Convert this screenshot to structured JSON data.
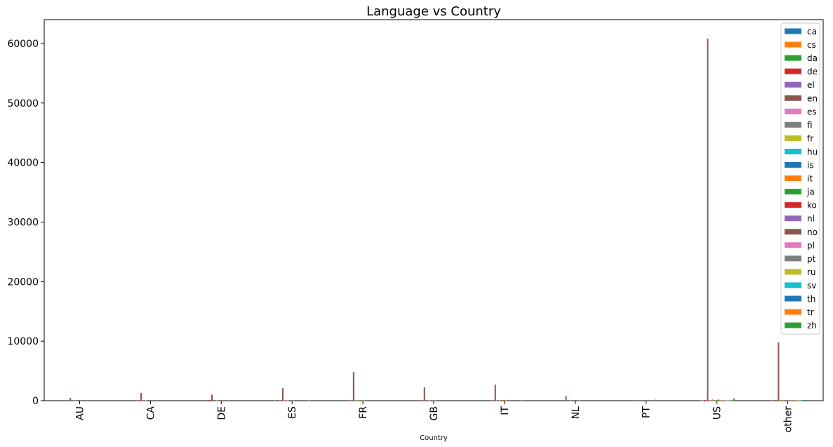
{
  "chart_data": {
    "type": "bar",
    "title": "Language vs Country",
    "xlabel": "Country",
    "ylabel": "",
    "ylim": [
      0,
      64000
    ],
    "yticks": [
      0,
      10000,
      20000,
      30000,
      40000,
      50000,
      60000
    ],
    "categories": [
      "AU",
      "CA",
      "DE",
      "ES",
      "FR",
      "GB",
      "IT",
      "NL",
      "PT",
      "US",
      "other"
    ],
    "legend_position": "top-right",
    "grid": false,
    "series": [
      {
        "name": "ca",
        "color": "#1f77b4",
        "values": [
          0,
          0,
          0,
          20,
          0,
          0,
          0,
          0,
          0,
          0,
          0
        ]
      },
      {
        "name": "cs",
        "color": "#ff7f0e",
        "values": [
          0,
          0,
          0,
          0,
          0,
          0,
          0,
          0,
          0,
          30,
          20
        ]
      },
      {
        "name": "da",
        "color": "#2ca02c",
        "values": [
          0,
          0,
          0,
          0,
          0,
          0,
          0,
          0,
          0,
          20,
          0
        ]
      },
      {
        "name": "de",
        "color": "#d62728",
        "values": [
          10,
          15,
          130,
          20,
          30,
          20,
          30,
          10,
          0,
          120,
          90
        ]
      },
      {
        "name": "el",
        "color": "#9467bd",
        "values": [
          0,
          0,
          0,
          0,
          0,
          0,
          0,
          0,
          0,
          20,
          0
        ]
      },
      {
        "name": "en",
        "color": "#8c564b",
        "values": [
          480,
          1300,
          1000,
          2100,
          4800,
          2250,
          2700,
          750,
          20,
          60800,
          9800
        ]
      },
      {
        "name": "es",
        "color": "#e377c2",
        "values": [
          0,
          10,
          0,
          60,
          20,
          0,
          20,
          0,
          0,
          150,
          80
        ]
      },
      {
        "name": "fi",
        "color": "#7f7f7f",
        "values": [
          0,
          0,
          0,
          0,
          0,
          0,
          0,
          0,
          0,
          20,
          0
        ]
      },
      {
        "name": "fr",
        "color": "#bcbd22",
        "values": [
          10,
          70,
          20,
          40,
          100,
          30,
          40,
          10,
          0,
          280,
          140
        ]
      },
      {
        "name": "hu",
        "color": "#17becf",
        "values": [
          0,
          0,
          0,
          0,
          0,
          0,
          0,
          0,
          0,
          20,
          0
        ]
      },
      {
        "name": "is",
        "color": "#1f77b4",
        "values": [
          0,
          0,
          0,
          0,
          0,
          0,
          0,
          0,
          0,
          10,
          0
        ]
      },
      {
        "name": "it",
        "color": "#ff7f0e",
        "values": [
          0,
          0,
          10,
          20,
          30,
          20,
          140,
          0,
          0,
          140,
          90
        ]
      },
      {
        "name": "ja",
        "color": "#2ca02c",
        "values": [
          0,
          0,
          0,
          20,
          30,
          10,
          20,
          0,
          0,
          180,
          80
        ]
      },
      {
        "name": "ko",
        "color": "#d62728",
        "values": [
          0,
          0,
          0,
          0,
          0,
          0,
          0,
          0,
          0,
          60,
          30
        ]
      },
      {
        "name": "nl",
        "color": "#9467bd",
        "values": [
          0,
          0,
          0,
          0,
          0,
          0,
          0,
          30,
          0,
          40,
          30
        ]
      },
      {
        "name": "no",
        "color": "#8c564b",
        "values": [
          0,
          0,
          0,
          0,
          0,
          0,
          0,
          0,
          0,
          20,
          0
        ]
      },
      {
        "name": "pl",
        "color": "#e377c2",
        "values": [
          0,
          0,
          0,
          0,
          0,
          0,
          0,
          0,
          0,
          40,
          20
        ]
      },
      {
        "name": "pt",
        "color": "#7f7f7f",
        "values": [
          0,
          0,
          0,
          0,
          0,
          0,
          0,
          0,
          180,
          40,
          30
        ]
      },
      {
        "name": "ru",
        "color": "#bcbd22",
        "values": [
          0,
          0,
          0,
          0,
          0,
          0,
          0,
          0,
          0,
          60,
          90
        ]
      },
      {
        "name": "sv",
        "color": "#17becf",
        "values": [
          0,
          0,
          0,
          0,
          0,
          0,
          0,
          0,
          0,
          40,
          50
        ]
      },
      {
        "name": "th",
        "color": "#1f77b4",
        "values": [
          0,
          0,
          0,
          0,
          0,
          0,
          0,
          0,
          0,
          30,
          20
        ]
      },
      {
        "name": "tr",
        "color": "#ff7f0e",
        "values": [
          0,
          0,
          0,
          0,
          0,
          0,
          0,
          0,
          0,
          20,
          0
        ]
      },
      {
        "name": "zh",
        "color": "#2ca02c",
        "values": [
          0,
          0,
          0,
          60,
          120,
          0,
          70,
          0,
          0,
          400,
          120
        ]
      }
    ]
  }
}
